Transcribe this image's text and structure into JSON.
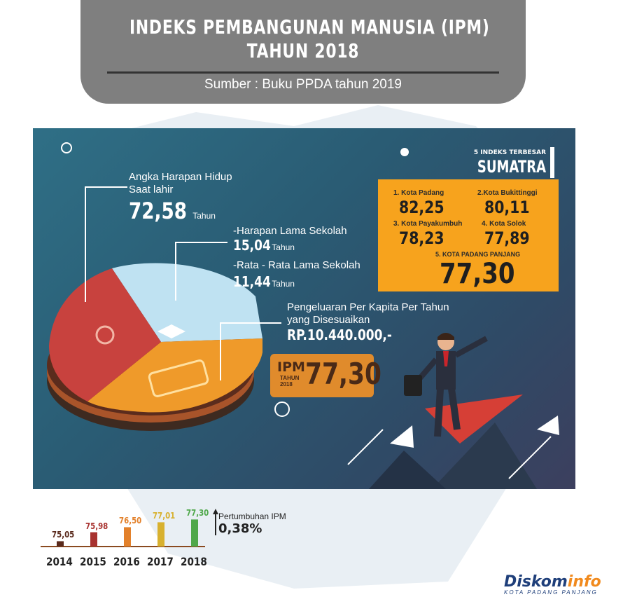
{
  "header": {
    "title_line1": "INDEKS PEMBANGUNAN MANUSIA (IPM)",
    "title_line2": "TAHUN 2018",
    "source": "Sumber : Buku PPDA tahun 2019"
  },
  "components": {
    "life_expectancy": {
      "label_line1": "Angka Harapan Hidup",
      "label_line2": "Saat lahir",
      "value": "72,58",
      "unit": "Tahun"
    },
    "expected_schooling": {
      "label": "-Harapan Lama Sekolah",
      "value": "15,04",
      "unit": "Tahun"
    },
    "mean_schooling": {
      "label": "-Rata - Rata Lama Sekolah",
      "value": "11,44",
      "unit": "Tahun"
    },
    "expenditure": {
      "label_line1": "Pengeluaran Per Kapita Per Tahun",
      "label_line2": "yang Disesuaikan",
      "value": "RP.10.440.000,-"
    }
  },
  "ipm_tag": {
    "key": "IPM",
    "year_label_1": "TAHUN",
    "year_label_2": "2018",
    "value": "77,30"
  },
  "ranking": {
    "subtitle": "5 INDEKS TERBESAR",
    "title": "SUMATRA BARAT",
    "items": [
      {
        "name": "1. Kota Padang",
        "value": "82,25"
      },
      {
        "name": "2.Kota Bukittinggi",
        "value": "80,11"
      },
      {
        "name": "3. Kota Payakumbuh",
        "value": "78,23"
      },
      {
        "name": "4. Kota Solok",
        "value": "77,89"
      },
      {
        "name": "5. KOTA PADANG PANJANG",
        "value": "77,30"
      }
    ]
  },
  "colors": {
    "panel": "#2f6281",
    "pie_red": "#c8423e",
    "pie_light_blue": "#bfe2f2",
    "pie_orange": "#ef9a2a",
    "rank_box": "#f7a31d"
  },
  "chart_data": {
    "type": "bar",
    "categories": [
      "2014",
      "2015",
      "2016",
      "2017",
      "2018"
    ],
    "values": [
      75.05,
      75.98,
      76.5,
      77.01,
      77.3
    ],
    "value_labels": [
      "75,05",
      "75,98",
      "76,50",
      "77,01",
      "77,30"
    ],
    "colors": [
      "#5a2a1c",
      "#a8322f",
      "#e3812b",
      "#d8b12f",
      "#4fa84a"
    ],
    "ylim": [
      74.5,
      77.4
    ]
  },
  "growth": {
    "label": "Pertumbuhan IPM",
    "value": "0,38%"
  },
  "logo": {
    "main_a": "Diskom",
    "main_b": "info",
    "sub": "KOTA PADANG PANJANG"
  }
}
